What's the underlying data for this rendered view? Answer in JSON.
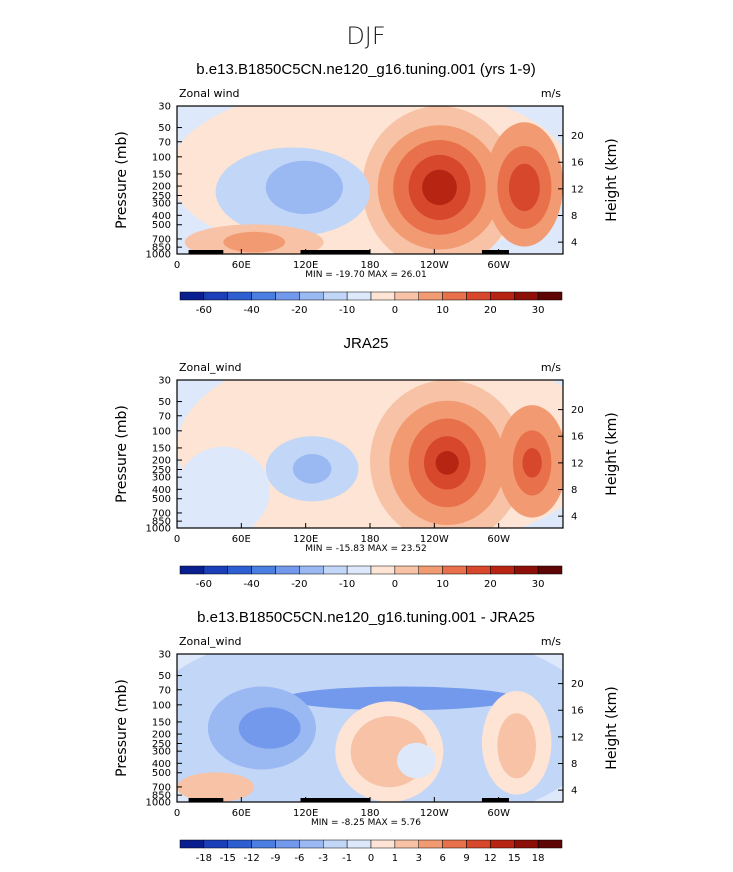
{
  "figure_title": "DJF",
  "chart_data": [
    {
      "type": "heatmap",
      "title": "b.e13.B1850C5CN.ne120_g16.tuning.001 (yrs 1-9)",
      "left_label": "Zonal wind",
      "units": "m/s",
      "ylabel": "Pressure (mb)",
      "y2label": "Height (km)",
      "yticks": [
        "30",
        "50",
        "70",
        "100",
        "150",
        "200",
        "250",
        "300",
        "400",
        "500",
        "700",
        "850",
        "1000"
      ],
      "y2ticks": [
        "20",
        "16",
        "12",
        "8",
        "4"
      ],
      "xticks": [
        "0",
        "60E",
        "120E",
        "180",
        "120W",
        "60W"
      ],
      "min_label": "MIN =  -19.70",
      "max_label": "MAX =   26.01",
      "colorbar_labels": [
        "-60",
        "-40",
        "-20",
        "-10",
        "0",
        "10",
        "20",
        "30"
      ],
      "colorbar": "abs",
      "terrain": true,
      "cells": [
        "000000000000000000000000000000",
        "000000000000000000000000000000",
        "000000000000000000000000000000",
        "000000-1-1-1-1000011111100111100",
        "0000-1-1-2-2-2-1-10111234432112342",
        "000-1-1-2-2-3-2-1-10112345542123442",
        "0-1-1-1-1-1-2-2-2-1-1011234543212343",
        "0-1-1-1-1-1-1-1-1-10011233321012221",
        "011000000001112221001111101",
        "01221000000111111000111001",
        "112332100000000-100000000",
        "122221100000000000000000"
      ]
    },
    {
      "type": "heatmap",
      "title": "JRA25",
      "left_label": "Zonal_wind",
      "units": "m/s",
      "ylabel": "Pressure (mb)",
      "y2label": "Height (km)",
      "yticks": [
        "30",
        "50",
        "70",
        "100",
        "150",
        "200",
        "250",
        "300",
        "400",
        "500",
        "700",
        "850",
        "1000"
      ],
      "y2ticks": [
        "20",
        "16",
        "12",
        "8",
        "4"
      ],
      "xticks": [
        "0",
        "60E",
        "120E",
        "180",
        "120W",
        "60W"
      ],
      "min_label": "MIN =  -15.83",
      "max_label": "MAX =   23.52",
      "colorbar_labels": [
        "-60",
        "-40",
        "-20",
        "-10",
        "0",
        "10",
        "20",
        "30"
      ],
      "colorbar": "abs",
      "terrain": false,
      "cells": []
    },
    {
      "type": "heatmap",
      "title": "b.e13.B1850C5CN.ne120_g16.tuning.001 - JRA25",
      "left_label": "Zonal_wind",
      "units": "m/s",
      "ylabel": "Pressure (mb)",
      "y2label": "Height (km)",
      "yticks": [
        "30",
        "50",
        "70",
        "100",
        "150",
        "200",
        "250",
        "300",
        "400",
        "500",
        "700",
        "850",
        "1000"
      ],
      "y2ticks": [
        "20",
        "16",
        "12",
        "8",
        "4"
      ],
      "xticks": [
        "0",
        "60E",
        "120E",
        "180",
        "120W",
        "60W"
      ],
      "min_label": "MIN =   -8.25",
      "max_label": "MAX =    5.76",
      "colorbar_labels": [
        "-18",
        "-15",
        "-12",
        "-9",
        "-6",
        "-3",
        "-1",
        "0",
        "1",
        "3",
        "6",
        "9",
        "12",
        "15",
        "18"
      ],
      "colorbar": "diff",
      "terrain": true,
      "cells": []
    }
  ],
  "colors": {
    "abs": [
      "#0a1f8f",
      "#1a3fb8",
      "#2d5fd0",
      "#4a7ee0",
      "#7399ec",
      "#9ab8f2",
      "#c2d6f7",
      "#dde9fb",
      "#fde4d4",
      "#f7c2a5",
      "#f29a72",
      "#e8704a",
      "#d6472b",
      "#b82412",
      "#8c1008",
      "#5e0606"
    ],
    "diff": [
      "#0a1f8f",
      "#1a3fb8",
      "#2d5fd0",
      "#4a7ee0",
      "#7399ec",
      "#9ab8f2",
      "#c2d6f7",
      "#dde9fb",
      "#fde4d4",
      "#f7c2a5",
      "#f29a72",
      "#e8704a",
      "#d6472b",
      "#b82412",
      "#8c1008",
      "#5e0606"
    ]
  }
}
